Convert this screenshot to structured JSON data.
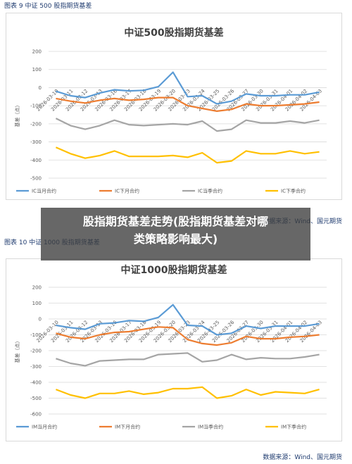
{
  "fig9_caption": "图表 9  中证 500 股指期货基差",
  "fig10_caption": "图表 10  中证 1000 股指期货基差",
  "source_top": "数据来源：Wind、国元期货",
  "source_bottom": "数据来源：Wind、国元期货",
  "overlay": {
    "line1": "股指期货基差走势(股指期货基差对哪",
    "line2": "类策略影响最大)"
  },
  "colors": {
    "series": [
      "#5b9bd5",
      "#ed7d31",
      "#a5a5a5",
      "#ffc000"
    ]
  },
  "chart_data": [
    {
      "type": "line",
      "title": "中证500股指期货基差",
      "ylabel": "基差（点）",
      "xlabel": "",
      "ylim": [
        -500,
        200
      ],
      "yticks": [
        200,
        100,
        0,
        -100,
        -200,
        -300,
        -400,
        -500
      ],
      "grid": true,
      "legend": "bottom",
      "x": [
        "2026-03-10",
        "2026-03-11",
        "2026-03-12",
        "2026-03-13",
        "2026-03-16",
        "2026-03-17",
        "2026-03-18",
        "2026-03-19",
        "2026-03-20",
        "2026-03-23",
        "2026-03-24",
        "2026-03-25",
        "2026-03-26",
        "2026-03-27",
        "2026-03-30",
        "2026-03-31",
        "2026-04-01",
        "2026-04-02",
        "2026-04-03"
      ],
      "xticks": [
        "2026-03-10",
        "2026-03-11",
        "2026-03-12",
        "2026-03-13",
        "2026-03-16",
        "2026-03-17",
        "2026-03-18",
        "2026-03-19",
        "2026-03-20",
        "2026-03-23",
        "2026-03-24",
        "2026-03-25",
        "2026-03-26",
        "2026-03-27",
        "2026-03-30",
        "2026-03-31",
        "2026-04-01",
        "2026-04-02",
        "2026-04-03"
      ],
      "series": [
        {
          "name": "IC当月合约",
          "values": [
            -20,
            -45,
            -55,
            -30,
            -12,
            -18,
            -15,
            5,
            85,
            -50,
            -45,
            -90,
            -75,
            -35,
            -45,
            -45,
            -40,
            -40,
            -25
          ]
        },
        {
          "name": "IC下月合约",
          "values": [
            -60,
            -75,
            -85,
            -70,
            -60,
            -70,
            -65,
            -55,
            -55,
            -100,
            -115,
            -130,
            -120,
            -90,
            -100,
            -100,
            -95,
            -90,
            -80
          ]
        },
        {
          "name": "IC当季合约",
          "values": [
            -170,
            -210,
            -230,
            -210,
            -180,
            -205,
            -210,
            -205,
            -200,
            -205,
            -185,
            -240,
            -230,
            -180,
            -195,
            -195,
            -185,
            -195,
            -180
          ]
        },
        {
          "name": "IC下季合约",
          "values": [
            -330,
            -365,
            -390,
            -375,
            -350,
            -380,
            -380,
            -380,
            -375,
            -385,
            -360,
            -415,
            -405,
            -350,
            -365,
            -365,
            -350,
            -365,
            -355
          ]
        }
      ]
    },
    {
      "type": "line",
      "title": "中证1000股指期货基差",
      "ylabel": "基差（点）",
      "xlabel": "",
      "ylim": [
        -600,
        200
      ],
      "yticks": [
        200,
        100,
        0,
        -100,
        -200,
        -300,
        -400,
        -500,
        -600
      ],
      "grid": true,
      "legend": "bottom",
      "x": [
        "2026-03-10",
        "2026-03-11",
        "2026-03-12",
        "2026-03-13",
        "2026-03-16",
        "2026-03-17",
        "2026-03-18",
        "2026-03-19",
        "2026-03-20",
        "2026-03-23",
        "2026-03-24",
        "2026-03-25",
        "2026-03-26",
        "2026-03-27",
        "2026-03-30",
        "2026-03-31",
        "2026-04-01",
        "2026-04-02",
        "2026-04-03"
      ],
      "xticks": [
        "2026-03-10",
        "2026-03-11",
        "2026-03-12",
        "2026-03-13",
        "2026-03-16",
        "2026-03-17",
        "2026-03-18",
        "2026-03-19",
        "2026-03-20",
        "2026-03-23",
        "2026-03-24",
        "2026-03-25",
        "2026-03-26",
        "2026-03-27",
        "2026-03-30",
        "2026-03-31",
        "2026-04-01",
        "2026-04-02",
        "2026-04-03"
      ],
      "series": [
        {
          "name": "IM当月合约",
          "values": [
            -40,
            -55,
            -65,
            -30,
            -25,
            -10,
            -15,
            10,
            90,
            -40,
            -45,
            -100,
            -90,
            -45,
            -60,
            -45,
            -45,
            -45,
            -30
          ]
        },
        {
          "name": "IM下月合约",
          "values": [
            -90,
            -115,
            -125,
            -100,
            -85,
            -80,
            -65,
            -50,
            -55,
            -130,
            -155,
            -165,
            -150,
            -110,
            -125,
            -125,
            -115,
            -110,
            -100
          ]
        },
        {
          "name": "IM当季合约",
          "values": [
            -250,
            -280,
            -295,
            -265,
            -260,
            -255,
            -255,
            -225,
            -220,
            -215,
            -270,
            -260,
            -225,
            -255,
            -245,
            -250,
            -250,
            -240,
            -225
          ]
        },
        {
          "name": "IM下季合约",
          "values": [
            -445,
            -480,
            -500,
            -470,
            -470,
            -455,
            -475,
            -465,
            -440,
            -440,
            -430,
            -500,
            -485,
            -445,
            -480,
            -460,
            -465,
            -470,
            -445
          ]
        }
      ]
    }
  ]
}
